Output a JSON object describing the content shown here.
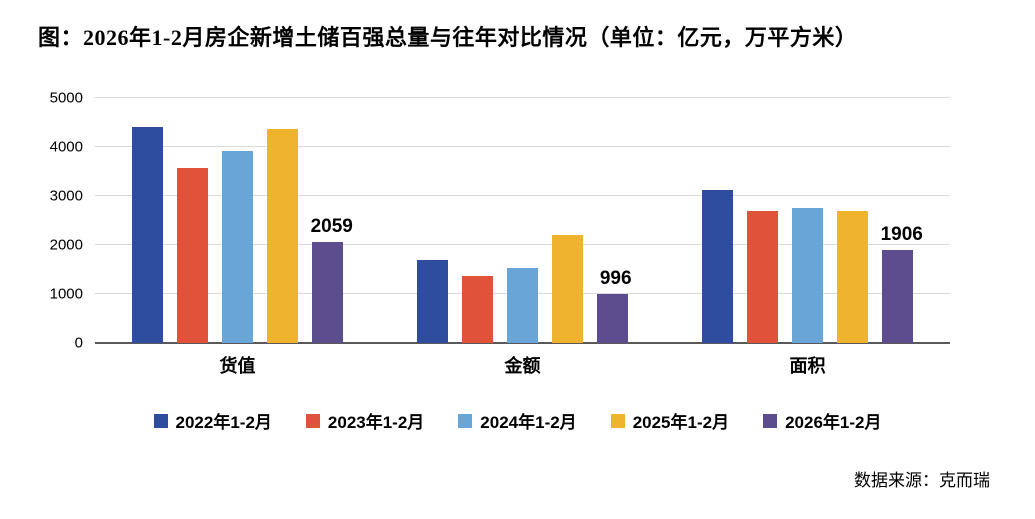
{
  "title": "图：2026年1-2月房企新增土储百强总量与往年对比情况（单位：亿元，万平方米）",
  "source": "数据来源：克而瑞",
  "chart_data": {
    "type": "bar",
    "title": "图：2026年1-2月房企新增土储百强总量与往年对比情况（单位：亿元，万平方米）",
    "categories": [
      "货值",
      "金额",
      "面积"
    ],
    "series": [
      {
        "name": "2022年1-2月",
        "color": "#2e4d9e",
        "values": [
          4400,
          1700,
          3130
        ],
        "labeled": false
      },
      {
        "name": "2023年1-2月",
        "color": "#e0523a",
        "values": [
          3580,
          1370,
          2700
        ],
        "labeled": false
      },
      {
        "name": "2024年1-2月",
        "color": "#6aa5d8",
        "values": [
          3920,
          1540,
          2760
        ],
        "labeled": false
      },
      {
        "name": "2025年1-2月",
        "color": "#f0b32e",
        "values": [
          4370,
          2200,
          2700
        ],
        "labeled": false
      },
      {
        "name": "2026年1-2月",
        "color": "#5d4d8e",
        "values": [
          2059,
          996,
          1906
        ],
        "labeled": true
      }
    ],
    "xlabel": "",
    "ylabel": "",
    "ylim": [
      0,
      5000
    ],
    "ytick_interval": 1000,
    "grid": true,
    "legend_position": "bottom",
    "data_labels": {
      "series": "2026年1-2月",
      "values": [
        2059,
        996,
        1906
      ]
    }
  }
}
